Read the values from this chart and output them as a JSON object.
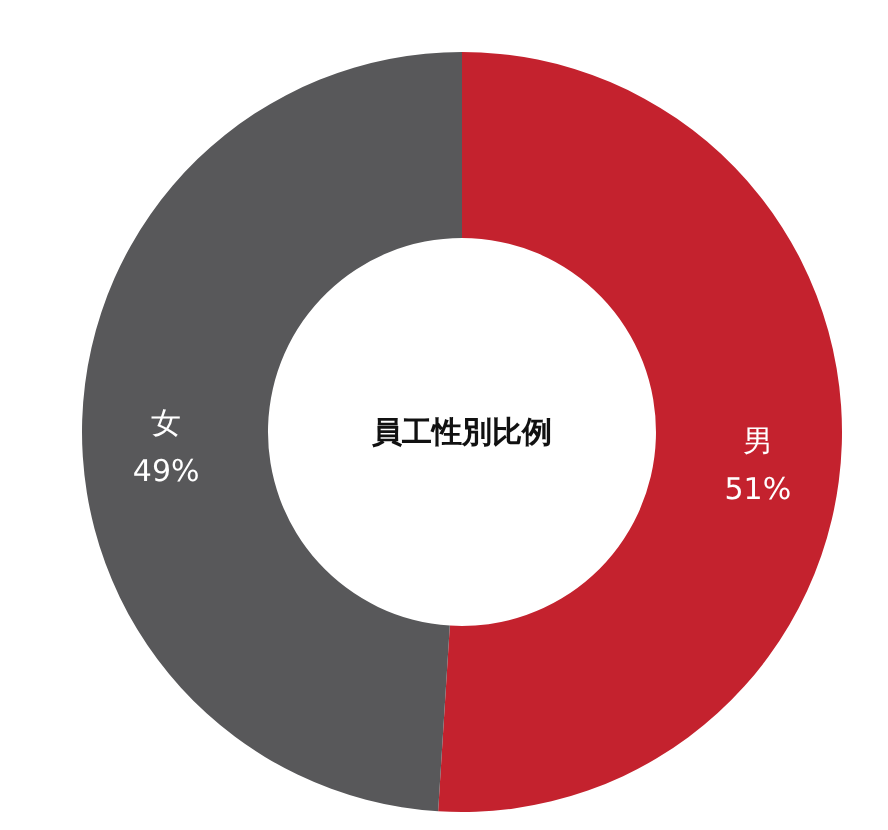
{
  "chart_data": {
    "type": "donut",
    "title": "員工性別比例",
    "categories": [
      "男",
      "女"
    ],
    "values": [
      51,
      49
    ],
    "colors": [
      "#c4222e",
      "#58585a"
    ],
    "value_labels": [
      "51%",
      "49%"
    ]
  }
}
